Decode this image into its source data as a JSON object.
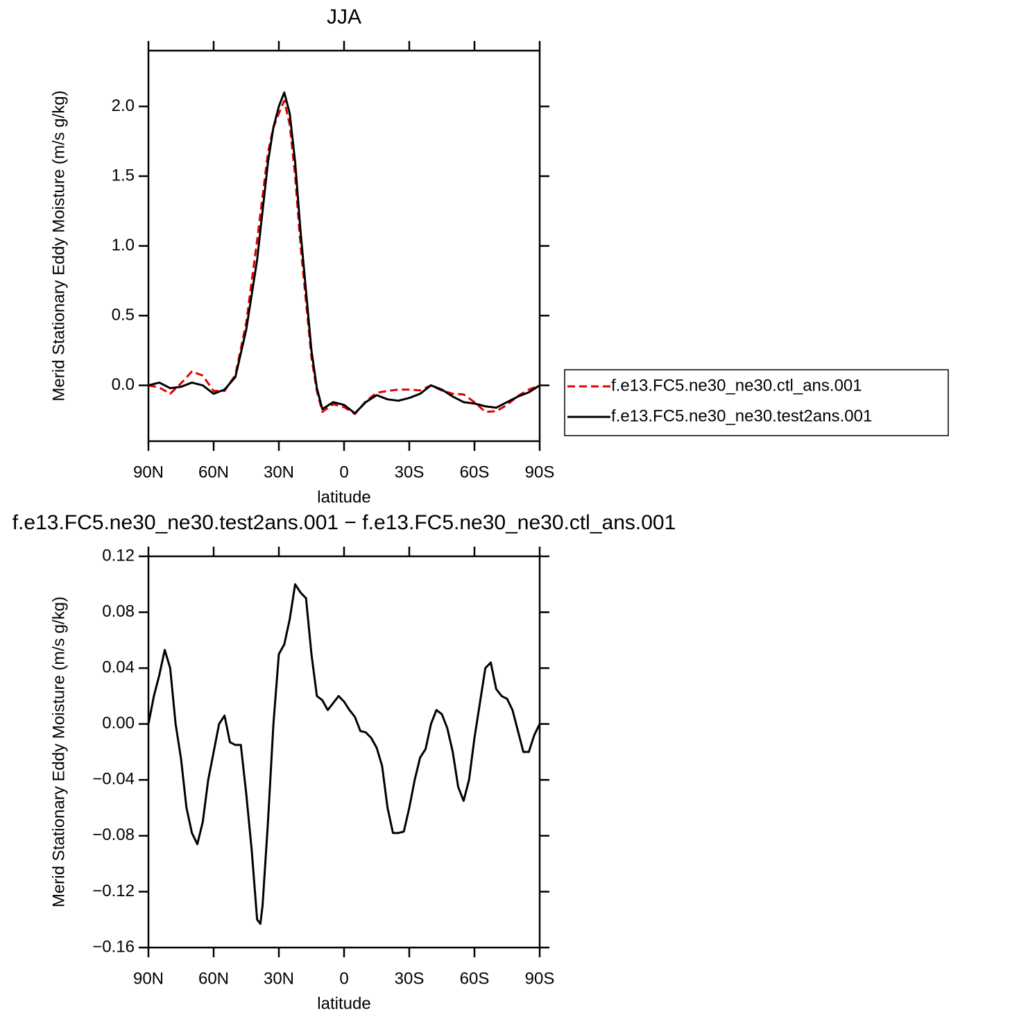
{
  "chart_data": [
    {
      "type": "line",
      "title": "JJA",
      "xlabel": "latitude",
      "ylabel": "Merid Stationary Eddy Moisture (m/s g/kg)",
      "x": [
        90,
        85,
        80,
        75,
        70,
        65,
        60,
        55,
        50,
        45,
        40,
        35,
        32.5,
        30,
        27.5,
        25,
        22.5,
        20,
        15,
        12.5,
        10,
        5,
        0,
        -5,
        -10,
        -15,
        -20,
        -25,
        -30,
        -35,
        -40,
        -45,
        -50,
        -55,
        -60,
        -65,
        -70,
        -75,
        -80,
        -85,
        -90
      ],
      "xlim": [
        90,
        -90
      ],
      "xticks": [
        {
          "value": 90,
          "label": "90N"
        },
        {
          "value": 60,
          "label": "60N"
        },
        {
          "value": 30,
          "label": "30N"
        },
        0,
        {
          "value": -30,
          "label": "30S"
        },
        {
          "value": -60,
          "label": "60S"
        },
        {
          "value": -90,
          "label": "90S"
        }
      ],
      "ylim": [
        -0.4,
        2.4
      ],
      "yticks": [
        {
          "value": 0,
          "label": "0.0"
        },
        0.5,
        {
          "value": 1,
          "label": "1.0"
        },
        1.5,
        {
          "value": 2,
          "label": "2.0"
        }
      ],
      "legend": "right",
      "series": [
        {
          "name": "f.e13.FC5.ne30_ne30.ctl_ans.001",
          "color": "#e00000",
          "dashed": true,
          "values": [
            0.0,
            -0.015,
            -0.06,
            0.015,
            0.1,
            0.07,
            -0.04,
            -0.04,
            0.075,
            0.45,
            1.04,
            1.67,
            1.85,
            1.95,
            2.04,
            1.87,
            1.5,
            1.0,
            0.2,
            -0.04,
            -0.19,
            -0.135,
            -0.156,
            -0.205,
            -0.114,
            -0.053,
            -0.04,
            -0.03,
            -0.03,
            -0.036,
            0.0,
            -0.037,
            -0.06,
            -0.065,
            -0.12,
            -0.19,
            -0.185,
            -0.14,
            -0.075,
            -0.03,
            0.0
          ]
        },
        {
          "name": "f.e13.FC5.ne30_ne30.test2ans.001",
          "color": "#000000",
          "dashed": false,
          "values": [
            0.0,
            0.02,
            -0.02,
            -0.01,
            0.02,
            0.0,
            -0.06,
            -0.03,
            0.06,
            0.4,
            0.9,
            1.6,
            1.85,
            2.0,
            2.1,
            1.95,
            1.6,
            1.1,
            0.25,
            -0.02,
            -0.17,
            -0.12,
            -0.14,
            -0.2,
            -0.12,
            -0.07,
            -0.1,
            -0.11,
            -0.09,
            -0.06,
            0.0,
            -0.03,
            -0.08,
            -0.12,
            -0.13,
            -0.15,
            -0.16,
            -0.12,
            -0.08,
            -0.05,
            0.0
          ]
        }
      ]
    },
    {
      "type": "line",
      "title": "f.e13.FC5.ne30_ne30.test2ans.001 − f.e13.FC5.ne30_ne30.ctl_ans.001",
      "xlabel": "latitude",
      "ylabel": "Merid Stationary Eddy Moisture (m/s g/kg)",
      "x": [
        90,
        87.5,
        85,
        82.5,
        80,
        77.5,
        75,
        72.5,
        70,
        67.5,
        65,
        62.5,
        60,
        57.5,
        55,
        52.5,
        50,
        47.5,
        45,
        42.5,
        40,
        38.5,
        37.5,
        35,
        32.5,
        30,
        27.5,
        25,
        22.5,
        20,
        17.5,
        15,
        12.5,
        10,
        7.5,
        5,
        2.5,
        0,
        -2.5,
        -5,
        -7.5,
        -10,
        -12.5,
        -15,
        -17.5,
        -20,
        -22.5,
        -25,
        -27.5,
        -30,
        -32.5,
        -35,
        -37.5,
        -40,
        -42.5,
        -45,
        -47.5,
        -50,
        -52.5,
        -55,
        -57.5,
        -60,
        -62.5,
        -65,
        -67.5,
        -70,
        -72.5,
        -75,
        -77.5,
        -80,
        -82.5,
        -85,
        -87.5,
        -90
      ],
      "xlim": [
        90,
        -90
      ],
      "xticks": [
        {
          "value": 90,
          "label": "90N"
        },
        {
          "value": 60,
          "label": "60N"
        },
        {
          "value": 30,
          "label": "30N"
        },
        0,
        {
          "value": -30,
          "label": "30S"
        },
        {
          "value": -60,
          "label": "60S"
        },
        {
          "value": -90,
          "label": "90S"
        }
      ],
      "ylim": [
        -0.16,
        0.12
      ],
      "yticks": [
        {
          "value": -0.16,
          "label": "−0.16"
        },
        {
          "value": -0.12,
          "label": "−0.12"
        },
        {
          "value": -0.08,
          "label": "−0.08"
        },
        {
          "value": -0.04,
          "label": "−0.04"
        },
        {
          "value": 0,
          "label": "0.00"
        },
        0.04,
        0.08,
        0.12
      ],
      "series": [
        {
          "color": "#000000",
          "dashed": false,
          "values": [
            0.0,
            0.02,
            0.035,
            0.053,
            0.04,
            0.0,
            -0.025,
            -0.06,
            -0.078,
            -0.086,
            -0.07,
            -0.04,
            -0.02,
            0.0,
            0.006,
            -0.013,
            -0.015,
            -0.015,
            -0.05,
            -0.09,
            -0.14,
            -0.143,
            -0.13,
            -0.07,
            0.0,
            0.05,
            0.057,
            0.075,
            0.1,
            0.094,
            0.09,
            0.05,
            0.02,
            0.017,
            0.01,
            0.015,
            0.02,
            0.016,
            0.01,
            0.005,
            -0.005,
            -0.006,
            -0.01,
            -0.017,
            -0.03,
            -0.06,
            -0.078,
            -0.078,
            -0.077,
            -0.06,
            -0.04,
            -0.024,
            -0.018,
            0.0,
            0.01,
            0.007,
            -0.003,
            -0.02,
            -0.045,
            -0.055,
            -0.04,
            -0.01,
            0.015,
            0.04,
            0.044,
            0.025,
            0.02,
            0.018,
            0.01,
            -0.005,
            -0.02,
            -0.02,
            -0.008,
            0.0
          ]
        }
      ]
    }
  ]
}
